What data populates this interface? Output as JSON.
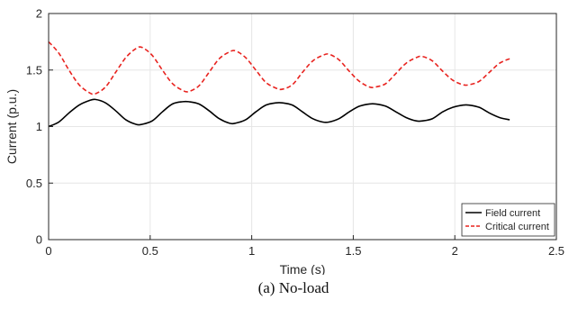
{
  "chart_data": {
    "type": "line",
    "title": "",
    "xlabel": "Time (s)",
    "ylabel": "Current (p.u.)",
    "xlim": [
      0,
      2.5
    ],
    "ylim": [
      0,
      2
    ],
    "xticks": [
      0,
      0.5,
      1,
      1.5,
      2,
      2.5
    ],
    "yticks": [
      0,
      0.5,
      1,
      1.5,
      2
    ],
    "xtick_labels": [
      "0",
      "0.5",
      "1",
      "1.5",
      "2",
      "2.5"
    ],
    "ytick_labels": [
      "0",
      "0.5",
      "1",
      "1.5",
      "2"
    ],
    "grid": true,
    "legend_position": "bottom-right",
    "series": [
      {
        "name": "Field current",
        "color": "#000000",
        "style": "solid",
        "x": [
          0,
          0.05,
          0.1,
          0.15,
          0.2,
          0.23,
          0.28,
          0.33,
          0.38,
          0.43,
          0.46,
          0.51,
          0.56,
          0.61,
          0.66,
          0.69,
          0.74,
          0.79,
          0.84,
          0.89,
          0.92,
          0.97,
          1.02,
          1.07,
          1.12,
          1.15,
          1.2,
          1.25,
          1.3,
          1.35,
          1.38,
          1.43,
          1.48,
          1.53,
          1.58,
          1.61,
          1.66,
          1.71,
          1.76,
          1.81,
          1.84,
          1.89,
          1.94,
          1.99,
          2.04,
          2.07,
          2.12,
          2.17,
          2.22,
          2.27
        ],
        "y": [
          1.0,
          1.04,
          1.12,
          1.19,
          1.23,
          1.24,
          1.21,
          1.14,
          1.06,
          1.02,
          1.02,
          1.05,
          1.13,
          1.2,
          1.22,
          1.22,
          1.2,
          1.14,
          1.07,
          1.03,
          1.03,
          1.06,
          1.13,
          1.19,
          1.21,
          1.21,
          1.19,
          1.13,
          1.07,
          1.04,
          1.04,
          1.07,
          1.13,
          1.18,
          1.2,
          1.2,
          1.18,
          1.13,
          1.08,
          1.05,
          1.05,
          1.07,
          1.13,
          1.17,
          1.19,
          1.19,
          1.17,
          1.12,
          1.08,
          1.06
        ]
      },
      {
        "name": "Critical current",
        "color": "#e8231f",
        "style": "dashed",
        "x": [
          0,
          0.05,
          0.1,
          0.15,
          0.2,
          0.23,
          0.28,
          0.33,
          0.38,
          0.43,
          0.46,
          0.51,
          0.56,
          0.61,
          0.66,
          0.69,
          0.74,
          0.79,
          0.84,
          0.89,
          0.92,
          0.97,
          1.02,
          1.07,
          1.12,
          1.15,
          1.2,
          1.25,
          1.3,
          1.35,
          1.38,
          1.43,
          1.48,
          1.53,
          1.58,
          1.61,
          1.66,
          1.71,
          1.76,
          1.81,
          1.84,
          1.89,
          1.94,
          1.99,
          2.04,
          2.07,
          2.12,
          2.17,
          2.22,
          2.27
        ],
        "y": [
          1.75,
          1.65,
          1.5,
          1.37,
          1.3,
          1.29,
          1.35,
          1.48,
          1.61,
          1.69,
          1.7,
          1.63,
          1.5,
          1.38,
          1.32,
          1.31,
          1.36,
          1.48,
          1.6,
          1.66,
          1.67,
          1.61,
          1.5,
          1.39,
          1.34,
          1.33,
          1.37,
          1.48,
          1.58,
          1.63,
          1.64,
          1.59,
          1.49,
          1.4,
          1.35,
          1.35,
          1.38,
          1.47,
          1.56,
          1.61,
          1.62,
          1.58,
          1.49,
          1.41,
          1.37,
          1.37,
          1.4,
          1.48,
          1.56,
          1.6
        ]
      }
    ]
  },
  "caption": "(a) No-load"
}
